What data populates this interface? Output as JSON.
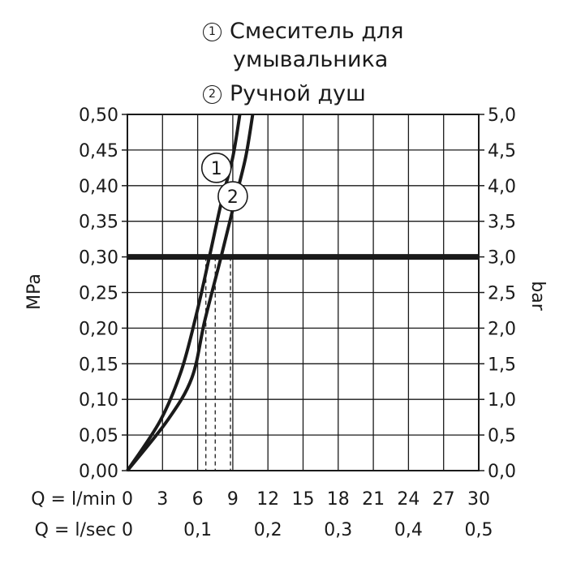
{
  "legend": [
    {
      "marker": "1",
      "label_line1": "Смеситель для",
      "label_line2": "умывальника"
    },
    {
      "marker": "2",
      "label": "Ручной душ"
    }
  ],
  "y_left_label": "MPa",
  "y_right_label": "bar",
  "x_row1_label": "Q = l/min",
  "x_row2_label": "Q = l/sec",
  "chart_data": {
    "type": "line",
    "x_axis": {
      "unit": "l/min",
      "range": [
        0,
        30
      ],
      "ticks": [
        "0",
        "3",
        "6",
        "9",
        "12",
        "15",
        "18",
        "21",
        "24",
        "27",
        "30"
      ]
    },
    "x_axis_secondary": {
      "unit": "l/sec",
      "ticks": [
        {
          "value": 0,
          "label": "0"
        },
        {
          "value": 0.1,
          "label": "0,1"
        },
        {
          "value": 0.2,
          "label": "0,2"
        },
        {
          "value": 0.3,
          "label": "0,3"
        },
        {
          "value": 0.4,
          "label": "0,4"
        },
        {
          "value": 0.5,
          "label": "0,5"
        }
      ]
    },
    "y_axis_left": {
      "unit": "MPa",
      "range": [
        0,
        0.5
      ],
      "ticks": [
        "0,00",
        "0,05",
        "0,10",
        "0,15",
        "0,20",
        "0,25",
        "0,30",
        "0,35",
        "0,40",
        "0,45",
        "0,50"
      ]
    },
    "y_axis_right": {
      "unit": "bar",
      "range": [
        0,
        5
      ],
      "ticks": [
        "0,0",
        "0,5",
        "1,0",
        "1,5",
        "2,0",
        "2,5",
        "3,0",
        "3,5",
        "4,0",
        "4,5",
        "5,0"
      ]
    },
    "grid": true,
    "reference_line": {
      "y": 0.3
    },
    "series": [
      {
        "marker": "1",
        "points": [
          [
            0,
            0
          ],
          [
            2.8,
            0.07
          ],
          [
            4.6,
            0.14
          ],
          [
            5.9,
            0.22
          ],
          [
            7.0,
            0.3
          ],
          [
            8.0,
            0.375
          ],
          [
            9.0,
            0.44
          ],
          [
            9.6,
            0.5
          ]
        ]
      },
      {
        "marker": "2",
        "points": [
          [
            0,
            0
          ],
          [
            3.4,
            0.07
          ],
          [
            5.5,
            0.13
          ],
          [
            6.6,
            0.21
          ],
          [
            8.0,
            0.3
          ],
          [
            9.2,
            0.38
          ],
          [
            10.1,
            0.44
          ],
          [
            10.7,
            0.5
          ]
        ]
      }
    ],
    "drop_lines": [
      {
        "x": 6.7
      },
      {
        "x": 7.5
      },
      {
        "x": 8.8
      }
    ],
    "markers_on_curves": [
      {
        "marker": "1",
        "x": 7.6,
        "y": 0.425
      },
      {
        "marker": "2",
        "x": 9.0,
        "y": 0.385
      }
    ]
  }
}
